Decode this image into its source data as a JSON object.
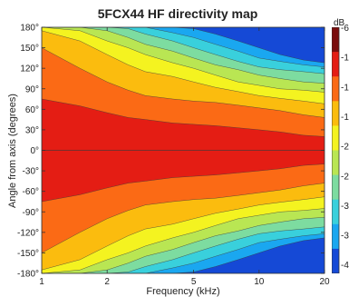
{
  "chart_data": {
    "type": "heatmap",
    "title": "5FCX44 HF directivity map",
    "xlabel": "Frequency (kHz)",
    "ylabel": "Angle from axis (degrees)",
    "x_scale": "log",
    "xlim": [
      1,
      20
    ],
    "ylim": [
      -180,
      180
    ],
    "x_ticks": [
      {
        "value": 1,
        "label": "1"
      },
      {
        "value": 2,
        "label": "2"
      },
      {
        "value": 5,
        "label": "5"
      },
      {
        "value": 10,
        "label": "10"
      },
      {
        "value": 20,
        "label": "20"
      }
    ],
    "y_ticks": [
      {
        "value": 180,
        "label": "180°"
      },
      {
        "value": 150,
        "label": "150°"
      },
      {
        "value": 120,
        "label": "120°"
      },
      {
        "value": 90,
        "label": "90°"
      },
      {
        "value": 60,
        "label": "60°"
      },
      {
        "value": 30,
        "label": "30°"
      },
      {
        "value": 0,
        "label": "0°"
      },
      {
        "value": -30,
        "label": "-30°"
      },
      {
        "value": -60,
        "label": "-60°"
      },
      {
        "value": -90,
        "label": "-90°"
      },
      {
        "value": -120,
        "label": "-120°"
      },
      {
        "value": -150,
        "label": "-150°"
      },
      {
        "value": -180,
        "label": "-180°"
      }
    ],
    "colorbar": {
      "unit": "dB",
      "top_label": "-6",
      "tick_labels": [
        "-1",
        "-1",
        "-1",
        "-2",
        "-2",
        "-3",
        "-3",
        "-4"
      ],
      "levels": [
        {
          "upper_db": 0,
          "lower_db": -6,
          "color": "#7a0d0d"
        },
        {
          "upper_db": -6,
          "lower_db": -9,
          "color": "#e41d14"
        },
        {
          "upper_db": -9,
          "lower_db": -12,
          "color": "#fb6a15"
        },
        {
          "upper_db": -12,
          "lower_db": -15,
          "color": "#fbbc0e"
        },
        {
          "upper_db": -15,
          "lower_db": -18,
          "color": "#f4f320"
        },
        {
          "upper_db": -18,
          "lower_db": -21,
          "color": "#b9e653"
        },
        {
          "upper_db": -21,
          "lower_db": -24,
          "color": "#7ddca0"
        },
        {
          "upper_db": -24,
          "lower_db": -27,
          "color": "#39d0dc"
        },
        {
          "upper_db": -27,
          "lower_db": -30,
          "color": "#1aa7f0"
        },
        {
          "upper_db": -30,
          "lower_db": -40,
          "color": "#1549d6"
        }
      ]
    },
    "contour_bands_upper_half": {
      "frequency_khz": [
        1.0,
        1.5,
        2.0,
        2.5,
        3.0,
        4.0,
        5.0,
        6.3,
        8.0,
        10.0,
        12.5,
        16.0,
        20.0
      ],
      "band_lower_angle_deg": {
        "0_to_-6": [
          0,
          0,
          0,
          0,
          0,
          0,
          0,
          0,
          0,
          0,
          0,
          0,
          0
        ],
        "-6_to_-9": [
          75,
          65,
          55,
          48,
          45,
          40,
          38,
          36,
          33,
          30,
          27,
          22,
          20
        ],
        "-9_to_-12": [
          150,
          120,
          100,
          88,
          80,
          75,
          72,
          70,
          66,
          62,
          58,
          52,
          48
        ],
        "-12_to_-15": [
          175,
          160,
          140,
          125,
          115,
          108,
          100,
          92,
          86,
          80,
          76,
          72,
          68
        ],
        "-15_to_-18": [
          180,
          175,
          160,
          150,
          140,
          128,
          120,
          110,
          100,
          95,
          90,
          88,
          85
        ],
        "-18_to_-21": [
          180,
          180,
          175,
          165,
          155,
          145,
          135,
          125,
          118,
          110,
          105,
          100,
          98
        ],
        "-21_to_-24": [
          180,
          180,
          180,
          178,
          170,
          160,
          150,
          140,
          130,
          122,
          118,
          115,
          112
        ],
        "-24_to_-27": [
          180,
          180,
          180,
          180,
          180,
          172,
          165,
          155,
          145,
          135,
          130,
          125,
          122
        ],
        "-27_to_-30": [
          180,
          180,
          180,
          180,
          180,
          180,
          178,
          170,
          160,
          150,
          140,
          132,
          128
        ],
        "-30_to_-40": [
          180,
          180,
          180,
          180,
          180,
          180,
          180,
          180,
          175,
          165,
          155,
          145,
          140
        ]
      },
      "symmetry": "mirrored about 0° for negative angles"
    }
  }
}
